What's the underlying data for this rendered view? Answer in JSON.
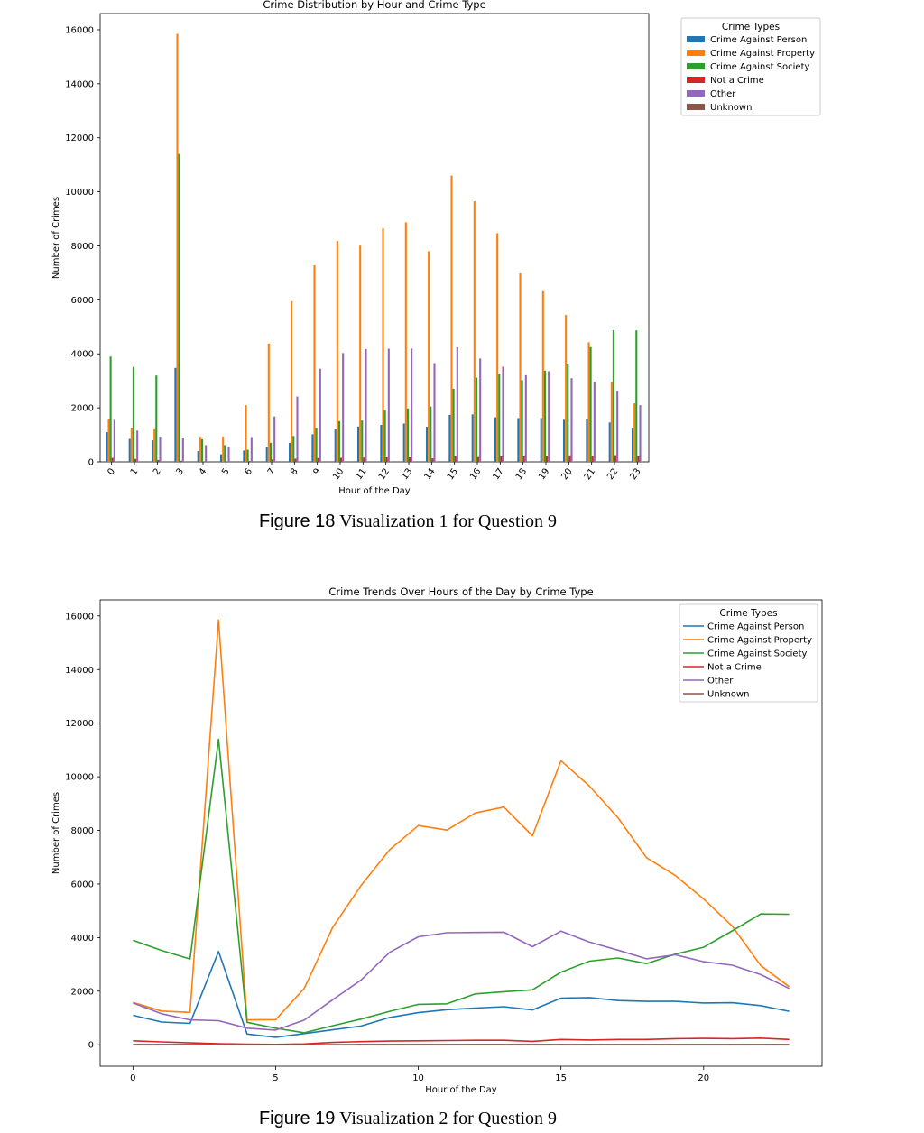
{
  "captions": {
    "fig1_label": "Figure 18",
    "fig1_text": " Visualization 1 for Question 9",
    "fig2_label": "Figure 19",
    "fig2_text": " Visualization 2 for Question 9"
  },
  "chart_data": [
    {
      "type": "bar",
      "title": "Crime Distribution by Hour and Crime Type",
      "xlabel": "Hour of the Day",
      "ylabel": "Number of Crimes",
      "ylim": [
        0,
        16600
      ],
      "yticks": [
        0,
        2000,
        4000,
        6000,
        8000,
        10000,
        12000,
        14000,
        16000
      ],
      "categories": [
        "0",
        "1",
        "2",
        "3",
        "4",
        "5",
        "6",
        "7",
        "8",
        "9",
        "10",
        "11",
        "12",
        "13",
        "14",
        "15",
        "16",
        "17",
        "18",
        "19",
        "20",
        "21",
        "22",
        "23"
      ],
      "legend_title": "Crime Types",
      "legend_position": "outside top-right",
      "grid": false,
      "series": [
        {
          "name": "Crime Against Person",
          "color": "#1f77b4",
          "values": [
            1100,
            850,
            800,
            3480,
            400,
            280,
            420,
            560,
            700,
            1020,
            1200,
            1310,
            1370,
            1420,
            1300,
            1740,
            1760,
            1650,
            1620,
            1620,
            1560,
            1570,
            1460,
            1250
          ]
        },
        {
          "name": "Crime Against Property",
          "color": "#ff7f0e",
          "values": [
            1580,
            1260,
            1210,
            15850,
            930,
            940,
            2100,
            4380,
            5950,
            7280,
            8180,
            8010,
            8650,
            8870,
            7800,
            10600,
            9650,
            8470,
            6980,
            6320,
            5440,
            4430,
            2960,
            2170
          ]
        },
        {
          "name": "Crime Against Society",
          "color": "#2ca02c",
          "values": [
            3900,
            3520,
            3200,
            11400,
            840,
            620,
            450,
            710,
            960,
            1250,
            1510,
            1530,
            1900,
            1980,
            2050,
            2710,
            3120,
            3240,
            3030,
            3380,
            3640,
            4250,
            4880,
            4870
          ]
        },
        {
          "name": "Not a Crime",
          "color": "#d62728",
          "values": [
            150,
            110,
            70,
            40,
            20,
            15,
            30,
            90,
            120,
            140,
            150,
            160,
            170,
            170,
            130,
            200,
            180,
            200,
            200,
            230,
            240,
            230,
            250,
            200
          ]
        },
        {
          "name": "Other",
          "color": "#9467bd",
          "values": [
            1560,
            1160,
            930,
            900,
            620,
            550,
            920,
            1680,
            2420,
            3450,
            4030,
            4180,
            4190,
            4200,
            3660,
            4240,
            3830,
            3530,
            3210,
            3360,
            3100,
            2970,
            2620,
            2100
          ]
        },
        {
          "name": "Unknown",
          "color": "#8c564b",
          "values": [
            10,
            10,
            10,
            10,
            5,
            5,
            5,
            5,
            10,
            10,
            10,
            10,
            10,
            10,
            10,
            10,
            10,
            10,
            10,
            10,
            10,
            10,
            10,
            10
          ]
        }
      ]
    },
    {
      "type": "line",
      "title": "Crime Trends Over Hours of the Day by Crime Type",
      "xlabel": "Hour of the Day",
      "ylabel": "Number of Crimes",
      "xlim": [
        -1.15,
        24.15
      ],
      "ylim": [
        -800,
        16600
      ],
      "xticks": [
        0,
        5,
        10,
        15,
        20
      ],
      "yticks": [
        0,
        2000,
        4000,
        6000,
        8000,
        10000,
        12000,
        14000,
        16000
      ],
      "x": [
        0,
        1,
        2,
        3,
        4,
        5,
        6,
        7,
        8,
        9,
        10,
        11,
        12,
        13,
        14,
        15,
        16,
        17,
        18,
        19,
        20,
        21,
        22,
        23
      ],
      "legend_title": "Crime Types",
      "legend_position": "top-right",
      "grid": false,
      "series": [
        {
          "name": "Crime Against Person",
          "color": "#1f77b4",
          "values": [
            1100,
            850,
            800,
            3480,
            400,
            280,
            420,
            560,
            700,
            1020,
            1200,
            1310,
            1370,
            1420,
            1300,
            1740,
            1760,
            1650,
            1620,
            1620,
            1560,
            1570,
            1460,
            1250
          ]
        },
        {
          "name": "Crime Against Property",
          "color": "#ff7f0e",
          "values": [
            1580,
            1260,
            1210,
            15850,
            930,
            940,
            2100,
            4380,
            5950,
            7280,
            8180,
            8010,
            8650,
            8870,
            7800,
            10600,
            9650,
            8470,
            6980,
            6320,
            5440,
            4430,
            2960,
            2170
          ]
        },
        {
          "name": "Crime Against Society",
          "color": "#2ca02c",
          "values": [
            3900,
            3520,
            3200,
            11400,
            840,
            620,
            450,
            710,
            960,
            1250,
            1510,
            1530,
            1900,
            1980,
            2050,
            2710,
            3120,
            3240,
            3030,
            3380,
            3640,
            4250,
            4880,
            4870
          ]
        },
        {
          "name": "Not a Crime",
          "color": "#d62728",
          "values": [
            150,
            110,
            70,
            40,
            20,
            15,
            30,
            90,
            120,
            140,
            150,
            160,
            170,
            170,
            130,
            200,
            180,
            200,
            200,
            230,
            240,
            230,
            250,
            200
          ]
        },
        {
          "name": "Other",
          "color": "#9467bd",
          "values": [
            1560,
            1160,
            930,
            900,
            620,
            550,
            920,
            1680,
            2420,
            3450,
            4030,
            4180,
            4190,
            4200,
            3660,
            4240,
            3830,
            3530,
            3210,
            3360,
            3100,
            2970,
            2620,
            2100
          ]
        },
        {
          "name": "Unknown",
          "color": "#8c564b",
          "values": [
            10,
            10,
            10,
            10,
            5,
            5,
            5,
            5,
            10,
            10,
            10,
            10,
            10,
            10,
            10,
            10,
            10,
            10,
            10,
            10,
            10,
            10,
            10,
            10
          ]
        }
      ]
    }
  ]
}
